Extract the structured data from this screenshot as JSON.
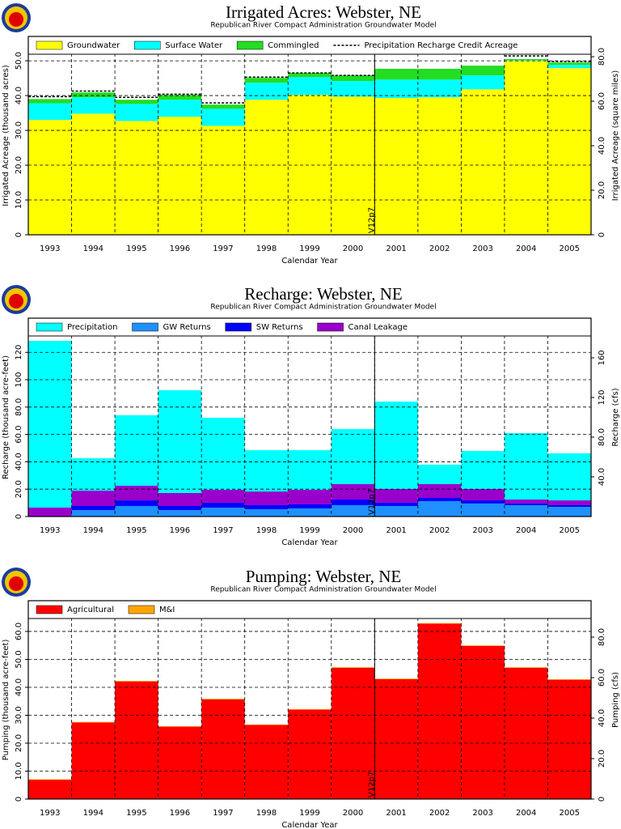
{
  "chart_data": [
    {
      "type": "bar",
      "stacked": true,
      "title": "Irrigated Acres: Webster, NE",
      "subtitle": "Republican River Compact Administration Groundwater Model",
      "xlabel": "Calendar Year",
      "ylabel": "Irrigated Acreage (thousand acres)",
      "y2label": "Irrigated Acreage (square miles)",
      "categories": [
        "1993",
        "1994",
        "1995",
        "1996",
        "1997",
        "1998",
        "1999",
        "2000",
        "2001",
        "2002",
        "2003",
        "2004",
        "2005"
      ],
      "series": [
        {
          "name": "Groundwater",
          "color": "#ffff00",
          "values": [
            33,
            34.8,
            32.7,
            33.9,
            31.3,
            38.8,
            40.2,
            39.7,
            39.3,
            39.5,
            41.8,
            50,
            47.9
          ]
        },
        {
          "name": "Surface Water",
          "color": "#00ffff",
          "values": [
            4.8,
            4.7,
            4.9,
            4.9,
            4.9,
            4.9,
            5.1,
            4.5,
            5.3,
            5.1,
            4,
            0.2,
            0.9
          ]
        },
        {
          "name": "Commingled",
          "color": "#22dd22",
          "values": [
            1.2,
            1.4,
            1.2,
            1.4,
            1.2,
            1.4,
            1.2,
            1.6,
            3.1,
            3.1,
            2.8,
            0.3,
            0.7
          ]
        },
        {
          "name": "Precipitation Recharge Credit Acreage",
          "type": "line",
          "color": "#000000",
          "values": [
            39.7,
            41.3,
            39.5,
            40.4,
            37.9,
            45.3,
            46.5,
            45.8,
            null,
            null,
            null,
            51.4,
            49.8
          ]
        }
      ],
      "ylim": [
        0,
        57
      ],
      "yticks": [
        0,
        {
          "value": 10,
          "label": "10.0"
        },
        {
          "value": 20,
          "label": "20.0"
        },
        {
          "value": 30,
          "label": "30.0"
        },
        {
          "value": 40,
          "label": "40.0"
        },
        {
          "value": 50,
          "label": "50.0"
        }
      ],
      "y2lim": [
        0,
        89.1
      ],
      "y2ticks": [
        0,
        {
          "value": 20,
          "label": "20.0"
        },
        {
          "value": 40,
          "label": "40.0"
        },
        {
          "value": 60,
          "label": "60.0"
        },
        {
          "value": 80,
          "label": "80.0"
        }
      ],
      "grid": true,
      "vline": {
        "label": "V12p7",
        "after": "2000"
      }
    },
    {
      "type": "bar",
      "stacked": true,
      "title": "Recharge: Webster, NE",
      "subtitle": "Republican River Compact Administration Groundwater Model",
      "xlabel": "Calendar Year",
      "ylabel": "Recharge (thousand acre-feet)",
      "y2label": "Recharge (cfs)",
      "categories": [
        "1993",
        "1994",
        "1995",
        "1996",
        "1997",
        "1998",
        "1999",
        "2000",
        "2001",
        "2002",
        "2003",
        "2004",
        "2005"
      ],
      "series": [
        {
          "name": "GW Returns",
          "color": "#1e90ff",
          "values": [
            0,
            4.7,
            7.7,
            4.7,
            6.5,
            5.3,
            5.9,
            8.3,
            7.7,
            11.2,
            9.5,
            8.3,
            7.1
          ]
        },
        {
          "name": "SW Returns",
          "color": "#0000ff",
          "values": [
            0,
            3,
            4.1,
            3,
            3.6,
            3,
            3,
            4.1,
            2.4,
            2.4,
            2.3,
            1.2,
            1.2
          ]
        },
        {
          "name": "Canal Leakage",
          "color": "#9900cc",
          "values": [
            6.5,
            11.2,
            10.7,
            9.5,
            9.4,
            10,
            10.6,
            11.3,
            10,
            10.1,
            8.3,
            2.9,
            3.5
          ]
        },
        {
          "name": "Precipitation",
          "color": "#00ffff",
          "values": [
            121.9,
            23.7,
            51.5,
            75.1,
            52.7,
            30.2,
            29,
            40.2,
            63.9,
            14.2,
            27.8,
            48.5,
            34.4
          ]
        }
      ],
      "legend_order": [
        "Precipitation",
        "GW Returns",
        "SW Returns",
        "Canal Leakage"
      ],
      "ylim": [
        0,
        145
      ],
      "yticks": [
        0,
        {
          "value": 20,
          "label": "20.0"
        },
        {
          "value": 40,
          "label": "40.0"
        },
        {
          "value": 60,
          "label": "60.0"
        },
        {
          "value": 80,
          "label": "80.0"
        },
        100,
        120
      ],
      "y2lim": [
        0,
        200
      ],
      "y2ticks": [
        {
          "value": 40,
          "label": "40.0"
        },
        {
          "value": 80,
          "label": "80.0"
        },
        120,
        160
      ],
      "grid": true,
      "vline": {
        "label": "V12p7",
        "after": "2000"
      }
    },
    {
      "type": "bar",
      "stacked": true,
      "title": "Pumping: Webster, NE",
      "subtitle": "Republican River Compact Administration Groundwater Model",
      "xlabel": "Calendar Year",
      "ylabel": "Pumping (thousand acre-feet)",
      "y2label": "Pumping (cfs)",
      "categories": [
        "1993",
        "1994",
        "1995",
        "1996",
        "1997",
        "1998",
        "1999",
        "2000",
        "2001",
        "2002",
        "2003",
        "2004",
        "2005"
      ],
      "series": [
        {
          "name": "Agricultural",
          "color": "#ff0000",
          "values": [
            6.9,
            27.4,
            42.1,
            25.9,
            35.7,
            26.5,
            32,
            47,
            42.9,
            62.8,
            54.8,
            47,
            42.7
          ]
        },
        {
          "name": "M&I",
          "color": "#ffa500",
          "values": [
            0.2,
            0.2,
            0.2,
            0.2,
            0.2,
            0.2,
            0.2,
            0.2,
            0.2,
            0.2,
            0.2,
            0.2,
            0.2
          ]
        }
      ],
      "ylim": [
        0,
        71
      ],
      "yticks": [
        0,
        {
          "value": 10,
          "label": "10.0"
        },
        {
          "value": 20,
          "label": "20.0"
        },
        {
          "value": 30,
          "label": "30.0"
        },
        {
          "value": 40,
          "label": "40.0"
        },
        {
          "value": 50,
          "label": "50.0"
        },
        {
          "value": 60,
          "label": "60.0"
        }
      ],
      "y2lim": [
        0,
        98
      ],
      "y2ticks": [
        0,
        {
          "value": 20,
          "label": "20.0"
        },
        {
          "value": 40,
          "label": "40.0"
        },
        {
          "value": 60,
          "label": "60.0"
        },
        {
          "value": 80,
          "label": "80.0"
        }
      ],
      "grid": true,
      "vline": {
        "label": "V12p7",
        "after": "2000"
      }
    }
  ]
}
